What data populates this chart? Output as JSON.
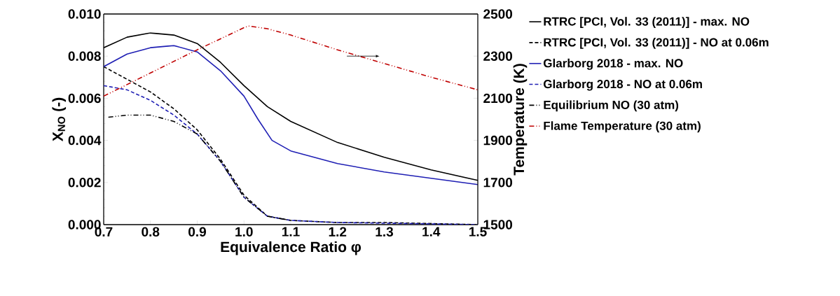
{
  "chart_data": {
    "type": "line",
    "xlabel": "Equivalence Ratio φ",
    "ylabel": "X$_{NO}$ (-)",
    "y2label": "Temperature (K)",
    "xlim": [
      0.7,
      1.5
    ],
    "ylim": [
      0,
      0.01
    ],
    "y2lim": [
      1500,
      2500
    ],
    "xticks": [
      {
        "value": 0.7,
        "label": "0.7"
      },
      {
        "value": 0.8,
        "label": "0.8"
      },
      {
        "value": 0.9,
        "label": "0.9"
      },
      {
        "value": 1.0,
        "label": "1.0"
      },
      {
        "value": 1.1,
        "label": "1.1"
      },
      {
        "value": 1.2,
        "label": "1.2"
      },
      {
        "value": 1.3,
        "label": "1.3"
      },
      {
        "value": 1.4,
        "label": "1.4"
      },
      {
        "value": 1.5,
        "label": "1.5"
      }
    ],
    "yticks": [
      {
        "value": 0,
        "label": "0.000"
      },
      {
        "value": 0.002,
        "label": "0.002"
      },
      {
        "value": 0.004,
        "label": "0.004"
      },
      {
        "value": 0.006,
        "label": "0.006"
      },
      {
        "value": 0.008,
        "label": "0.008"
      },
      {
        "value": 0.01,
        "label": "0.010"
      }
    ],
    "y2ticks": [
      1500,
      1700,
      1900,
      2100,
      2300,
      2500
    ],
    "legend": "right",
    "grid": false,
    "marker": "none",
    "series": [
      {
        "name": "RTRC [PCI, Vol. 33 (2011)] - max. NO",
        "color": "#000000",
        "line_style": "solid",
        "x": [
          0.7,
          0.75,
          0.8,
          0.85,
          0.9,
          0.95,
          1.0,
          1.05,
          1.1,
          1.2,
          1.3,
          1.4,
          1.5
        ],
        "values": [
          0.0084,
          0.0089,
          0.0091,
          0.009,
          0.0086,
          0.0077,
          0.0066,
          0.0056,
          0.0049,
          0.0039,
          0.0032,
          0.0026,
          0.0021
        ]
      },
      {
        "name": "RTRC [PCI, Vol. 33 (2011)] - NO at 0.06m",
        "color": "#000000",
        "line_style": "dashed",
        "x": [
          0.7,
          0.75,
          0.8,
          0.85,
          0.9,
          0.95,
          1.0,
          1.05,
          1.1,
          1.2,
          1.3,
          1.5
        ],
        "values": [
          0.0075,
          0.0069,
          0.0063,
          0.0055,
          0.0045,
          0.0031,
          0.0014,
          0.0004,
          0.0002,
          0.0001,
          0.0001,
          0.0
        ]
      },
      {
        "name": "Glarborg 2018 - max. NO",
        "color": "#1f1fb4",
        "line_style": "solid",
        "x": [
          0.7,
          0.75,
          0.8,
          0.85,
          0.9,
          0.95,
          1.0,
          1.03,
          1.06,
          1.1,
          1.2,
          1.3,
          1.4,
          1.5
        ],
        "values": [
          0.0075,
          0.0081,
          0.0084,
          0.0085,
          0.0082,
          0.0073,
          0.0061,
          0.005,
          0.004,
          0.0035,
          0.0029,
          0.0025,
          0.0022,
          0.0019
        ]
      },
      {
        "name": "Glarborg 2018 - NO at 0.06m",
        "color": "#1f1fb4",
        "line_style": "dashed",
        "x": [
          0.7,
          0.75,
          0.8,
          0.85,
          0.9,
          0.95,
          1.0,
          1.05,
          1.1,
          1.2,
          1.5
        ],
        "values": [
          0.0066,
          0.0064,
          0.0059,
          0.0052,
          0.0043,
          0.003,
          0.0013,
          0.0004,
          0.0002,
          0.0001,
          0.0
        ]
      },
      {
        "name": "Equilibrium NO (30 atm)",
        "color": "#000000",
        "line_style": "dashdotdot",
        "x": [
          0.71,
          0.75,
          0.8,
          0.85,
          0.9,
          0.95,
          1.0,
          1.05,
          1.1
        ],
        "values": [
          0.0051,
          0.0052,
          0.0052,
          0.0049,
          0.0043,
          0.003,
          0.0013,
          0.0004,
          0.0002
        ]
      },
      {
        "name": "Flame Temperature (30 atm)",
        "color": "#c00000",
        "line_style": "dashdotdot",
        "axis": "y2",
        "x": [
          0.7,
          0.8,
          0.9,
          1.0,
          1.01,
          1.05,
          1.1,
          1.2,
          1.3,
          1.4,
          1.5
        ],
        "values": [
          2110,
          2220,
          2330,
          2435,
          2443,
          2430,
          2400,
          2330,
          2265,
          2200,
          2140
        ]
      }
    ]
  }
}
